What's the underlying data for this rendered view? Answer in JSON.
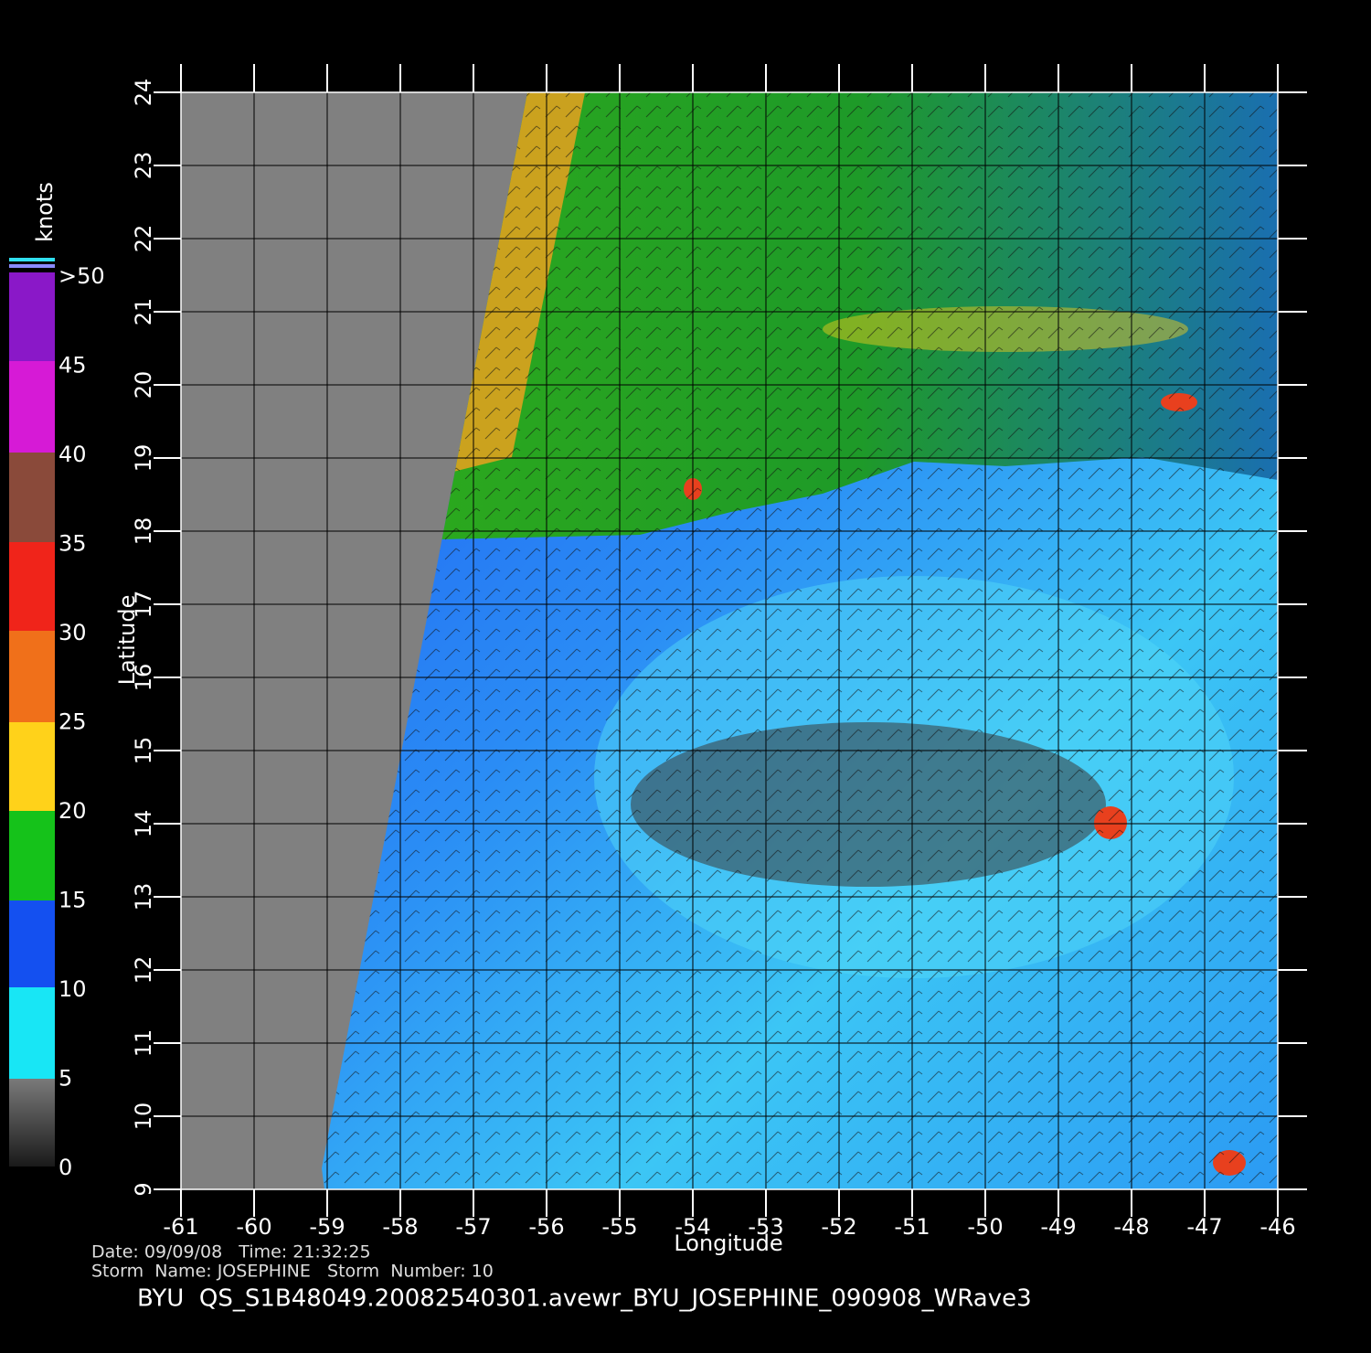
{
  "map": {
    "title": "BYU  QS_S1B48049.20082540301.avewr_BYU_JOSEPHINE_090908_WRave3",
    "date_line": "Date: 09/09/08   Time: 21:32:25",
    "storm_line": "Storm  Name: JOSEPHINE   Storm  Number: 10",
    "xlabel": "Longitude",
    "ylabel": "Latitude",
    "xlim": [
      -61,
      -46
    ],
    "ylim": [
      9,
      24
    ],
    "xticks": [
      -61,
      -60,
      -59,
      -58,
      -57,
      -56,
      -55,
      -54,
      -53,
      -52,
      -51,
      -50,
      -49,
      -48,
      -47,
      -46
    ],
    "yticks": [
      9,
      10,
      11,
      12,
      13,
      14,
      15,
      16,
      17,
      18,
      19,
      20,
      21,
      22,
      23,
      24
    ],
    "colorbar": {
      "unit": "knots",
      "labels": [
        0,
        5,
        10,
        15,
        20,
        25,
        30,
        35,
        40,
        45,
        ">50"
      ]
    }
  }
}
